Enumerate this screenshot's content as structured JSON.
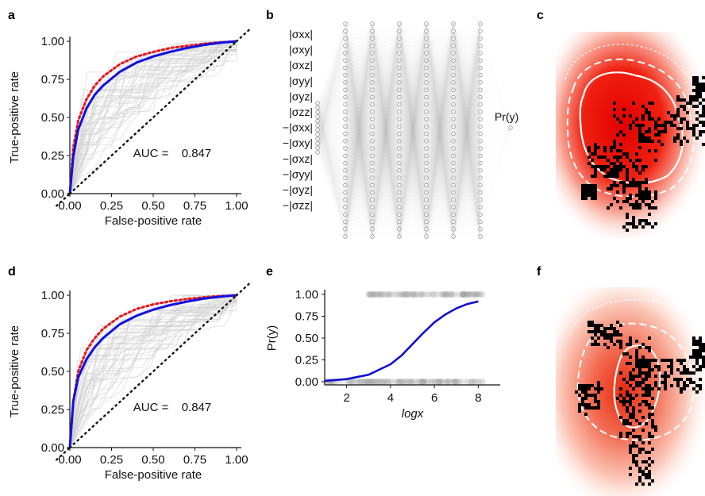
{
  "panel_labels": [
    "a",
    "b",
    "c",
    "d",
    "e",
    "f"
  ],
  "chart_data": [
    {
      "panel": "a",
      "type": "line",
      "xlabel": "False-positive rate",
      "ylabel": "True-positive rate",
      "xlim": [
        0,
        1
      ],
      "ylim": [
        0,
        1
      ],
      "xticks": [
        "0.00",
        "0.25",
        "0.50",
        "0.75",
        "1.00"
      ],
      "yticks": [
        "0.00",
        "0.25",
        "0.50",
        "0.75",
        "1.00"
      ],
      "annotation": "AUC = ",
      "auc": "0.847",
      "series": [
        {
          "style": "red-dotted",
          "x": [
            0,
            0.02,
            0.05,
            0.1,
            0.15,
            0.2,
            0.3,
            0.4,
            0.5,
            0.6,
            0.7,
            0.8,
            0.9,
            1.0
          ],
          "y": [
            0,
            0.3,
            0.48,
            0.62,
            0.71,
            0.77,
            0.85,
            0.9,
            0.93,
            0.955,
            0.97,
            0.983,
            0.993,
            1.0
          ]
        },
        {
          "style": "blue-solid",
          "x": [
            0,
            0.02,
            0.05,
            0.1,
            0.15,
            0.2,
            0.3,
            0.4,
            0.5,
            0.6,
            0.7,
            0.8,
            0.9,
            1.0
          ],
          "y": [
            0,
            0.24,
            0.42,
            0.56,
            0.65,
            0.71,
            0.8,
            0.86,
            0.9,
            0.93,
            0.955,
            0.975,
            0.99,
            1.0
          ]
        },
        {
          "style": "black-dotted",
          "x": [
            0,
            1
          ],
          "y": [
            0,
            1
          ]
        }
      ]
    },
    {
      "panel": "b",
      "type": "diagram",
      "input_labels": [
        "|σxx|",
        "|σxy|",
        "|σxz|",
        "|σyy|",
        "|σyz|",
        "|σzz|",
        "−|σxx|",
        "−|σxy|",
        "−|σxz|",
        "−|σyy|",
        "−|σyz|",
        "−|σzz|"
      ],
      "output_label": "Pr(y)"
    },
    {
      "panel": "d",
      "type": "line",
      "xlabel": "False-positive rate",
      "ylabel": "True-positive rate",
      "xlim": [
        0,
        1
      ],
      "ylim": [
        0,
        1
      ],
      "xticks": [
        "0.00",
        "0.25",
        "0.50",
        "0.75",
        "1.00"
      ],
      "yticks": [
        "0.00",
        "0.25",
        "0.50",
        "0.75",
        "1.00"
      ],
      "annotation": "AUC = ",
      "auc": "0.847",
      "series": [
        {
          "style": "red-dotted",
          "x": [
            0,
            0.02,
            0.05,
            0.1,
            0.15,
            0.2,
            0.3,
            0.4,
            0.5,
            0.6,
            0.7,
            0.8,
            0.9,
            1.0
          ],
          "y": [
            0,
            0.3,
            0.5,
            0.64,
            0.72,
            0.78,
            0.86,
            0.91,
            0.94,
            0.96,
            0.975,
            0.986,
            0.995,
            1.0
          ]
        },
        {
          "style": "blue-solid",
          "x": [
            0,
            0.02,
            0.05,
            0.1,
            0.15,
            0.2,
            0.3,
            0.4,
            0.5,
            0.6,
            0.7,
            0.8,
            0.9,
            1.0
          ],
          "y": [
            0,
            0.3,
            0.46,
            0.58,
            0.66,
            0.72,
            0.81,
            0.865,
            0.905,
            0.935,
            0.958,
            0.977,
            0.99,
            1.0
          ]
        },
        {
          "style": "black-dotted",
          "x": [
            0,
            1
          ],
          "y": [
            0,
            1
          ]
        }
      ]
    },
    {
      "panel": "e",
      "type": "line",
      "xlabel": "logx",
      "ylabel": "Pr(y)",
      "xlim": [
        1,
        9
      ],
      "ylim": [
        0,
        1
      ],
      "xticks": [
        "2",
        "4",
        "6",
        "8"
      ],
      "yticks": [
        "0.00",
        "0.25",
        "0.50",
        "0.75",
        "1.00"
      ],
      "series": [
        {
          "style": "blue-solid",
          "x": [
            1,
            2,
            3,
            4,
            4.5,
            5,
            5.5,
            6,
            6.5,
            7,
            7.5,
            8
          ],
          "y": [
            0.01,
            0.03,
            0.08,
            0.2,
            0.3,
            0.43,
            0.56,
            0.68,
            0.77,
            0.84,
            0.89,
            0.92
          ]
        }
      ]
    }
  ]
}
